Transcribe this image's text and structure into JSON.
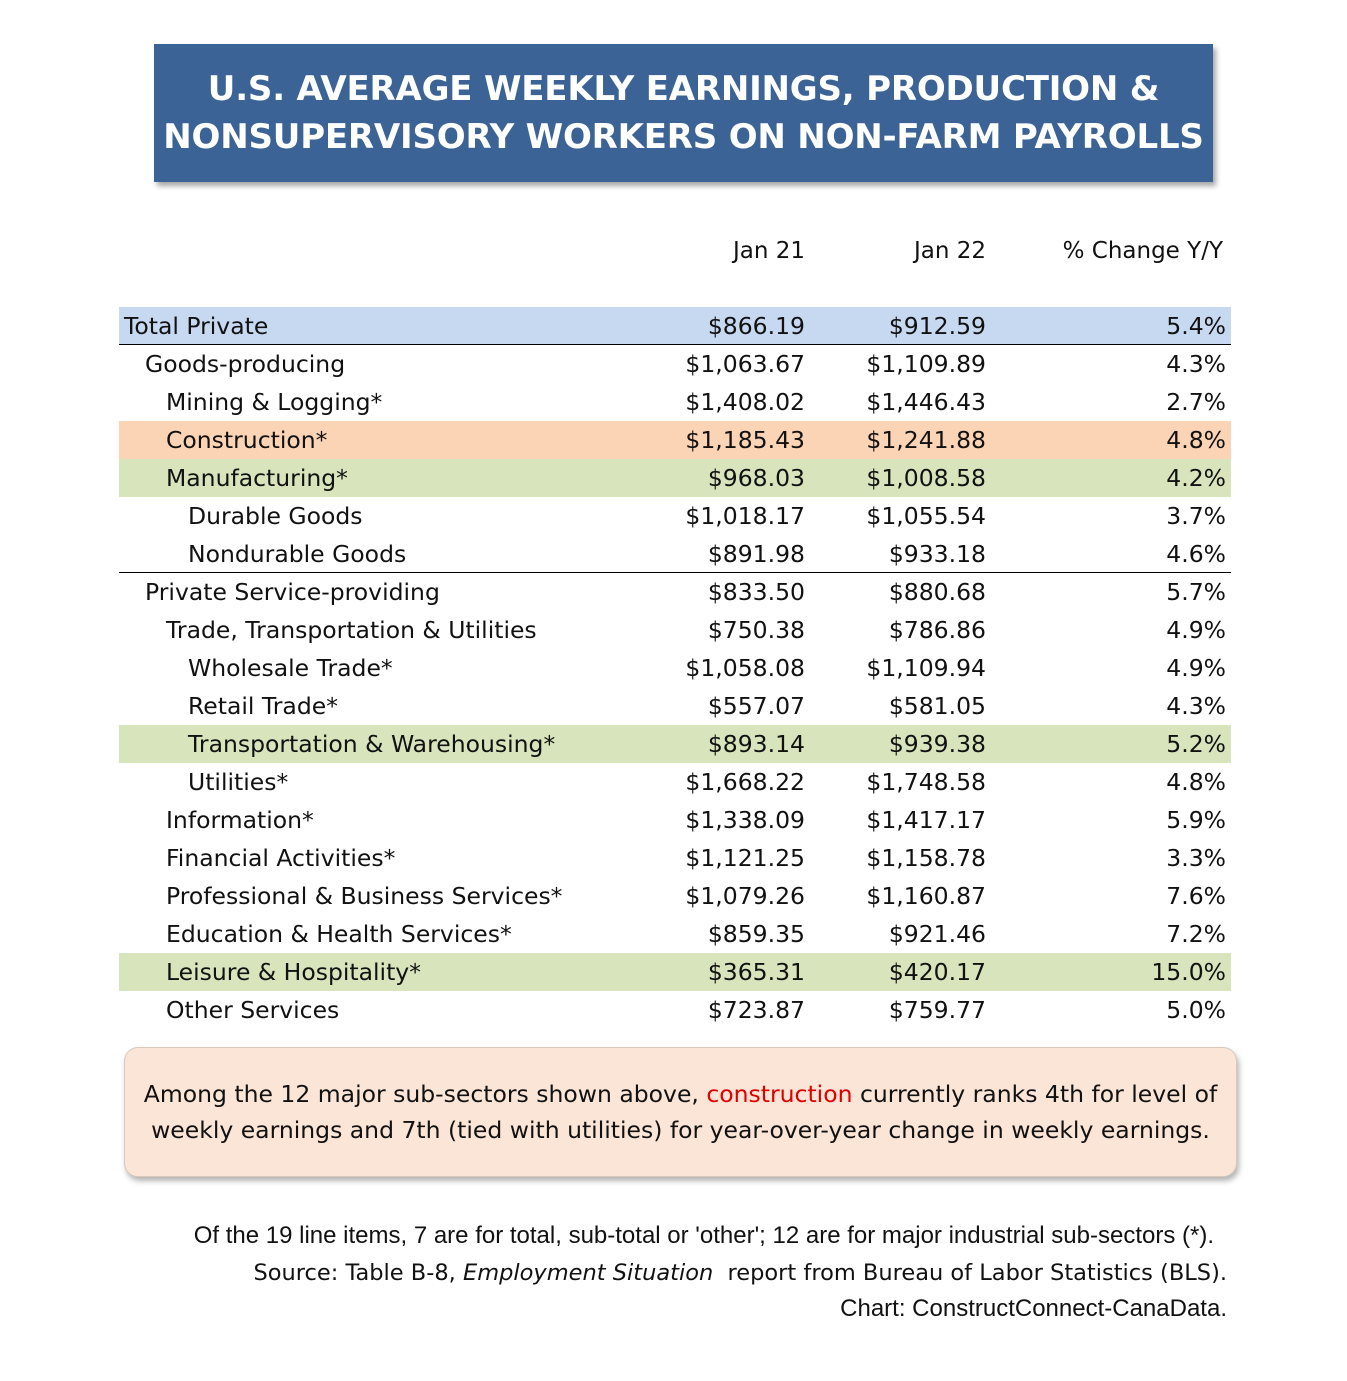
{
  "title": {
    "line1": "U.S. AVERAGE WEEKLY EARNINGS, PRODUCTION &",
    "line2": "NONSUPERVISORY WORKERS ON NON-FARM PAYROLLS"
  },
  "colors": {
    "title_bg": "#3b6396",
    "highlight_blue": "#c6d9f1",
    "highlight_orange": "#fbd3b5",
    "highlight_green": "#d8e4bc",
    "note_bg": "#fbe5d7",
    "note_highlight_text": "#e00000"
  },
  "chart_data": {
    "type": "table",
    "columns": [
      "Jan 21",
      "Jan 22",
      "% Change Y/Y"
    ],
    "rows": [
      {
        "label": "Total Private",
        "indent": 0,
        "jan21": "$866.19",
        "jan22": "$912.59",
        "change": "5.4%",
        "highlight": "blue",
        "border_below": true
      },
      {
        "label": "Goods-producing",
        "indent": 1,
        "jan21": "$1,063.67",
        "jan22": "$1,109.89",
        "change": "4.3%",
        "highlight": "none",
        "border_below": false
      },
      {
        "label": "Mining & Logging*",
        "indent": 2,
        "jan21": "$1,408.02",
        "jan22": "$1,446.43",
        "change": "2.7%",
        "highlight": "none",
        "border_below": false
      },
      {
        "label": "Construction*",
        "indent": 2,
        "jan21": "$1,185.43",
        "jan22": "$1,241.88",
        "change": "4.8%",
        "highlight": "orange",
        "border_below": false
      },
      {
        "label": "Manufacturing*",
        "indent": 2,
        "jan21": "$968.03",
        "jan22": "$1,008.58",
        "change": "4.2%",
        "highlight": "green",
        "border_below": false
      },
      {
        "label": "Durable Goods",
        "indent": 3,
        "jan21": "$1,018.17",
        "jan22": "$1,055.54",
        "change": "3.7%",
        "highlight": "none",
        "border_below": false
      },
      {
        "label": "Nondurable Goods",
        "indent": 3,
        "jan21": "$891.98",
        "jan22": "$933.18",
        "change": "4.6%",
        "highlight": "none",
        "border_below": true
      },
      {
        "label": "Private Service-providing",
        "indent": 1,
        "jan21": "$833.50",
        "jan22": "$880.68",
        "change": "5.7%",
        "highlight": "none",
        "border_below": false
      },
      {
        "label": "Trade, Transportation & Utilities",
        "indent": 2,
        "jan21": "$750.38",
        "jan22": "$786.86",
        "change": "4.9%",
        "highlight": "none",
        "border_below": false
      },
      {
        "label": "Wholesale Trade*",
        "indent": 3,
        "jan21": "$1,058.08",
        "jan22": "$1,109.94",
        "change": "4.9%",
        "highlight": "none",
        "border_below": false
      },
      {
        "label": "Retail Trade*",
        "indent": 3,
        "jan21": "$557.07",
        "jan22": "$581.05",
        "change": "4.3%",
        "highlight": "none",
        "border_below": false
      },
      {
        "label": "Transportation & Warehousing*",
        "indent": 3,
        "jan21": "$893.14",
        "jan22": "$939.38",
        "change": "5.2%",
        "highlight": "green",
        "border_below": false
      },
      {
        "label": "Utilities*",
        "indent": 3,
        "jan21": "$1,668.22",
        "jan22": "$1,748.58",
        "change": "4.8%",
        "highlight": "none",
        "border_below": false
      },
      {
        "label": "Information*",
        "indent": 2,
        "jan21": "$1,338.09",
        "jan22": "$1,417.17",
        "change": "5.9%",
        "highlight": "none",
        "border_below": false
      },
      {
        "label": "Financial Activities*",
        "indent": 2,
        "jan21": "$1,121.25",
        "jan22": "$1,158.78",
        "change": "3.3%",
        "highlight": "none",
        "border_below": false
      },
      {
        "label": "Professional & Business Services*",
        "indent": 2,
        "jan21": "$1,079.26",
        "jan22": "$1,160.87",
        "change": "7.6%",
        "highlight": "none",
        "border_below": false
      },
      {
        "label": "Education & Health Services*",
        "indent": 2,
        "jan21": "$859.35",
        "jan22": "$921.46",
        "change": "7.2%",
        "highlight": "none",
        "border_below": false
      },
      {
        "label": "Leisure & Hospitality*",
        "indent": 2,
        "jan21": "$365.31",
        "jan22": "$420.17",
        "change": "15.0%",
        "highlight": "green",
        "border_below": false
      },
      {
        "label": "Other Services",
        "indent": 2,
        "jan21": "$723.87",
        "jan22": "$759.77",
        "change": "5.0%",
        "highlight": "none",
        "border_below": false
      }
    ]
  },
  "note": {
    "line1_before": "Among the 12 major sub-sectors shown above, ",
    "line1_highlight": "construction",
    "line1_after": " currently ranks 4th for level of",
    "line2": "weekly earnings and 7th (tied with utilities) for year-over-year change in weekly earnings."
  },
  "footer": {
    "line1": "Of the 19 line items, 7 are for total, sub-total or 'other'; 12 are for major industrial sub-sectors (*).",
    "line2_before": "Source: Table B-8, ",
    "line2_italic": "Employment Situation",
    "line2_after": "  report from Bureau of Labor Statistics (BLS).",
    "line3": "Chart: ConstructConnect-CanaData."
  }
}
